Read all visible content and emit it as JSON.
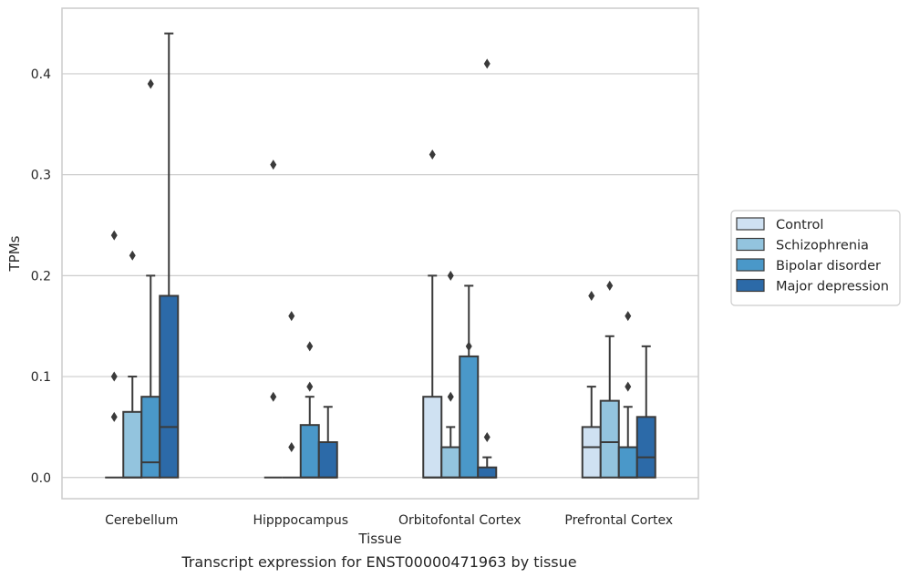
{
  "chart_data": {
    "type": "box",
    "title": "",
    "caption": "Transcript expression for ENST00000471963 by tissue",
    "xlabel": "Tissue",
    "ylabel": "TPMs",
    "ylim": [
      -0.021,
      0.465
    ],
    "yticks": [
      {
        "value": 0.0,
        "label": "0.0"
      },
      {
        "value": 0.1,
        "label": "0.1"
      },
      {
        "value": 0.2,
        "label": "0.2"
      },
      {
        "value": 0.3,
        "label": "0.3"
      },
      {
        "value": 0.4,
        "label": "0.4"
      }
    ],
    "grid": "horizontal",
    "legend_position": "right",
    "categories": [
      "Cerebellum",
      "Hipppocampus",
      "Orbitofontal Cortex",
      "Prefrontal Cortex"
    ],
    "series": [
      {
        "name": "Control",
        "color": "#cfe1f2",
        "boxes": [
          {
            "q1": 0.0,
            "median": 0.0,
            "q3": 0.0,
            "whisker_low": 0.0,
            "whisker_high": 0.0,
            "outliers": [
              0.06,
              0.1,
              0.24
            ]
          },
          {
            "q1": 0.0,
            "median": 0.0,
            "q3": 0.0,
            "whisker_low": 0.0,
            "whisker_high": 0.0,
            "outliers": [
              0.08,
              0.31
            ]
          },
          {
            "q1": 0.0,
            "median": 0.0,
            "q3": 0.08,
            "whisker_low": 0.0,
            "whisker_high": 0.2,
            "outliers": [
              0.32
            ]
          },
          {
            "q1": 0.0,
            "median": 0.03,
            "q3": 0.05,
            "whisker_low": 0.0,
            "whisker_high": 0.09,
            "outliers": [
              0.18
            ]
          }
        ]
      },
      {
        "name": "Schizophrenia",
        "color": "#93c4de",
        "boxes": [
          {
            "q1": 0.0,
            "median": 0.0,
            "q3": 0.065,
            "whisker_low": 0.0,
            "whisker_high": 0.1,
            "outliers": [
              0.22
            ]
          },
          {
            "q1": 0.0,
            "median": 0.0,
            "q3": 0.0,
            "whisker_low": 0.0,
            "whisker_high": 0.0,
            "outliers": [
              0.03,
              0.16
            ]
          },
          {
            "q1": 0.0,
            "median": 0.0,
            "q3": 0.03,
            "whisker_low": 0.0,
            "whisker_high": 0.05,
            "outliers": [
              0.08,
              0.2
            ]
          },
          {
            "q1": 0.0,
            "median": 0.035,
            "q3": 0.076,
            "whisker_low": 0.0,
            "whisker_high": 0.14,
            "outliers": [
              0.19
            ]
          }
        ]
      },
      {
        "name": "Bipolar disorder",
        "color": "#4a98c9",
        "boxes": [
          {
            "q1": 0.0,
            "median": 0.015,
            "q3": 0.08,
            "whisker_low": 0.0,
            "whisker_high": 0.2,
            "outliers": [
              0.39
            ]
          },
          {
            "q1": 0.0,
            "median": 0.0,
            "q3": 0.052,
            "whisker_low": 0.0,
            "whisker_high": 0.08,
            "outliers": [
              0.09,
              0.13
            ]
          },
          {
            "q1": 0.0,
            "median": 0.0,
            "q3": 0.12,
            "whisker_low": 0.0,
            "whisker_high": 0.19,
            "outliers": [
              0.13
            ]
          },
          {
            "q1": 0.0,
            "median": 0.0,
            "q3": 0.03,
            "whisker_low": 0.0,
            "whisker_high": 0.07,
            "outliers": [
              0.09,
              0.16
            ]
          }
        ]
      },
      {
        "name": "Major depression",
        "color": "#2c6aa8",
        "boxes": [
          {
            "q1": 0.0,
            "median": 0.05,
            "q3": 0.18,
            "whisker_low": 0.0,
            "whisker_high": 0.44,
            "outliers": []
          },
          {
            "q1": 0.0,
            "median": 0.0,
            "q3": 0.035,
            "whisker_low": 0.0,
            "whisker_high": 0.07,
            "outliers": []
          },
          {
            "q1": 0.0,
            "median": 0.0,
            "q3": 0.01,
            "whisker_low": 0.0,
            "whisker_high": 0.02,
            "outliers": [
              0.04,
              0.41
            ]
          },
          {
            "q1": 0.0,
            "median": 0.02,
            "q3": 0.06,
            "whisker_low": 0.0,
            "whisker_high": 0.13,
            "outliers": []
          }
        ]
      }
    ]
  }
}
